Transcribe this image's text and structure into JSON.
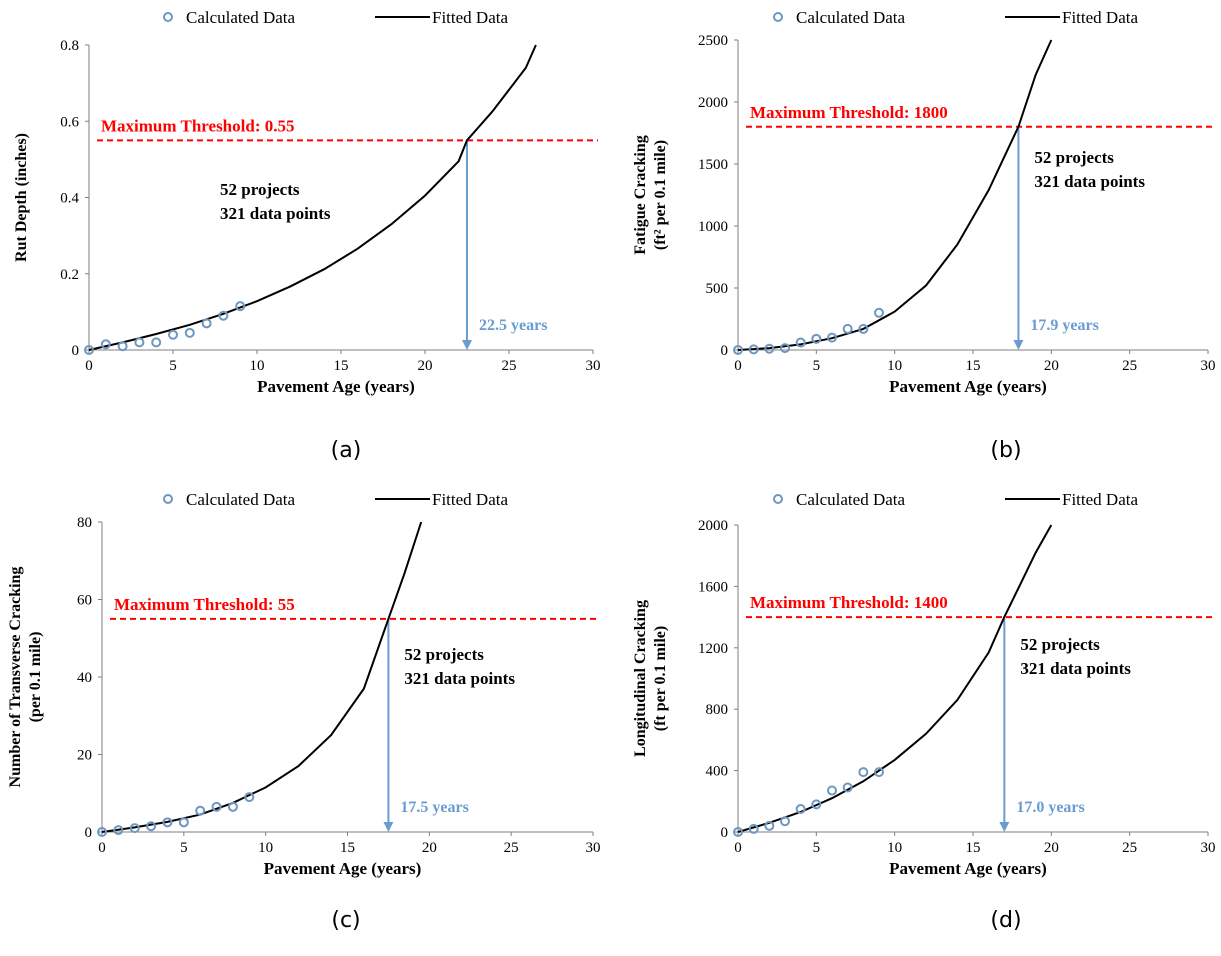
{
  "colors": {
    "calculated": "#6e97c0",
    "fitted": "#000000",
    "threshold": "#ff0000",
    "arrow": "#6a9bd1",
    "year_label": "#6a9bd1"
  },
  "legend": {
    "calculated_label": "Calculated Data",
    "fitted_label": "Fitted Data"
  },
  "annotation": {
    "projects": "52 projects",
    "data_points": "321 data points"
  },
  "chart_data": [
    {
      "panel": "(a)",
      "type": "scatter+line",
      "xlabel": "Pavement Age (years)",
      "ylabel_lines": [
        "Rut Depth (inches)"
      ],
      "xlim": [
        0,
        30
      ],
      "ylim": [
        0,
        0.8
      ],
      "xticks": [
        0,
        5,
        10,
        15,
        20,
        25,
        30
      ],
      "yticks": [
        0,
        0.2,
        0.4,
        0.6,
        0.8
      ],
      "ytick_labels": [
        "0",
        "0.2",
        "0.4",
        "0.6",
        "0.8"
      ],
      "series": [
        {
          "name": "Calculated Data",
          "type": "scatter",
          "x": [
            0,
            1,
            2,
            3,
            4,
            5,
            6,
            7,
            8,
            9
          ],
          "y": [
            0,
            0.015,
            0.01,
            0.02,
            0.02,
            0.04,
            0.045,
            0.07,
            0.09,
            0.115
          ]
        },
        {
          "name": "Fitted Data",
          "type": "line",
          "x": [
            0,
            2,
            4,
            6,
            8,
            10,
            12,
            14,
            16,
            18,
            20,
            22,
            22.5,
            24,
            26,
            26.6
          ],
          "y": [
            0,
            0.02,
            0.042,
            0.066,
            0.095,
            0.128,
            0.167,
            0.212,
            0.266,
            0.33,
            0.405,
            0.495,
            0.55,
            0.625,
            0.74,
            0.8
          ]
        }
      ],
      "threshold": {
        "value": 0.55,
        "label": "Maximum Threshold: 0.55"
      },
      "intersection": {
        "x": 22.5,
        "label": "22.5 years"
      }
    },
    {
      "panel": "(b)",
      "type": "scatter+line",
      "xlabel": "Pavement Age (years)",
      "ylabel_lines": [
        "Fatigue Cracking",
        "(ft² per 0.1 mile)"
      ],
      "xlim": [
        0,
        30
      ],
      "ylim": [
        0,
        2500
      ],
      "xticks": [
        0,
        5,
        10,
        15,
        20,
        25,
        30
      ],
      "yticks": [
        0,
        500,
        1000,
        1500,
        2000,
        2500
      ],
      "ytick_labels": [
        "0",
        "500",
        "1000",
        "1500",
        "2000",
        "2500"
      ],
      "series": [
        {
          "name": "Calculated Data",
          "type": "scatter",
          "x": [
            0,
            1,
            2,
            3,
            4,
            5,
            6,
            7,
            8,
            9
          ],
          "y": [
            0,
            5,
            10,
            15,
            60,
            90,
            100,
            170,
            170,
            300
          ]
        },
        {
          "name": "Fitted Data",
          "type": "line",
          "x": [
            0,
            2,
            4,
            6,
            8,
            10,
            12,
            14,
            16,
            17.9,
            19,
            20
          ],
          "y": [
            0,
            15,
            45,
            95,
            170,
            310,
            520,
            850,
            1290,
            1800,
            2220,
            2500
          ]
        }
      ],
      "threshold": {
        "value": 1800,
        "label": "Maximum Threshold: 1800"
      },
      "intersection": {
        "x": 17.9,
        "label": "17.9 years"
      }
    },
    {
      "panel": "(c)",
      "type": "scatter+line",
      "xlabel": "Pavement Age (years)",
      "ylabel_lines": [
        "Number of Transverse Cracking",
        "(per 0.1 mile)"
      ],
      "xlim": [
        0,
        30
      ],
      "ylim": [
        0,
        80
      ],
      "xticks": [
        0,
        5,
        10,
        15,
        20,
        25,
        30
      ],
      "yticks": [
        0,
        20,
        40,
        60,
        80
      ],
      "ytick_labels": [
        "0",
        "20",
        "40",
        "60",
        "80"
      ],
      "series": [
        {
          "name": "Calculated Data",
          "type": "scatter",
          "x": [
            0,
            1,
            2,
            3,
            4,
            5,
            6,
            7,
            8,
            9
          ],
          "y": [
            0,
            0.5,
            1,
            1.5,
            2.5,
            2.5,
            5.5,
            6.5,
            6.5,
            9
          ]
        },
        {
          "name": "Fitted Data",
          "type": "line",
          "x": [
            0,
            2,
            4,
            6,
            8,
            10,
            12,
            14,
            16,
            17.5,
            18.5,
            19.5
          ],
          "y": [
            0,
            1.2,
            2.6,
            4.5,
            7.5,
            11.5,
            17,
            25,
            37,
            55,
            67,
            80
          ]
        }
      ],
      "threshold": {
        "value": 55,
        "label": "Maximum Threshold: 55"
      },
      "intersection": {
        "x": 17.5,
        "label": "17.5 years"
      }
    },
    {
      "panel": "(d)",
      "type": "scatter+line",
      "xlabel": "Pavement Age (years)",
      "ylabel_lines": [
        "Longitudinal Cracking",
        "(ft per 0.1 mile)"
      ],
      "xlim": [
        0,
        30
      ],
      "ylim": [
        0,
        2000
      ],
      "xticks": [
        0,
        5,
        10,
        15,
        20,
        25,
        30
      ],
      "yticks": [
        0,
        400,
        800,
        1200,
        1600,
        2000
      ],
      "ytick_labels": [
        "0",
        "400",
        "800",
        "1200",
        "1600",
        "2000"
      ],
      "series": [
        {
          "name": "Calculated Data",
          "type": "scatter",
          "x": [
            0,
            1,
            2,
            3,
            4,
            5,
            6,
            7,
            8,
            9
          ],
          "y": [
            0,
            20,
            40,
            70,
            150,
            180,
            270,
            290,
            390,
            390
          ]
        },
        {
          "name": "Fitted Data",
          "type": "line",
          "x": [
            0,
            2,
            4,
            6,
            8,
            10,
            12,
            14,
            16,
            17,
            18,
            19,
            20
          ],
          "y": [
            0,
            60,
            130,
            220,
            330,
            470,
            640,
            860,
            1170,
            1400,
            1610,
            1820,
            2000
          ]
        }
      ],
      "threshold": {
        "value": 1400,
        "label": "Maximum Threshold: 1400"
      },
      "intersection": {
        "x": 17.0,
        "label": "17.0 years"
      }
    }
  ]
}
